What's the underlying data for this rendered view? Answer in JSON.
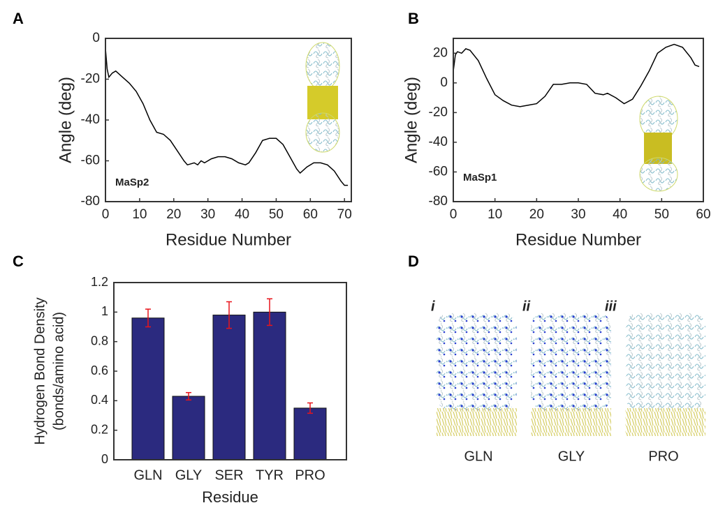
{
  "chart_data": [
    {
      "type": "line",
      "panel_label": "A",
      "ylabel": "Angle (deg)",
      "xlabel": "Residue Number",
      "annotation": "MaSp2",
      "color": "#000000",
      "x": [
        0,
        0.5,
        1,
        2,
        3,
        5,
        7,
        9,
        11,
        13,
        15,
        17,
        19,
        21,
        23,
        24,
        26,
        27,
        28,
        29,
        31,
        33,
        35,
        37,
        39,
        41,
        42,
        44,
        46,
        48,
        50,
        52,
        54,
        56,
        57,
        59,
        61,
        63,
        65,
        67,
        69,
        70,
        71
      ],
      "values": [
        -5,
        -15,
        -19,
        -17,
        -16,
        -19,
        -22,
        -26,
        -32,
        -40,
        -46,
        -47,
        -50,
        -55,
        -60,
        -62,
        -61,
        -62,
        -60,
        -61,
        -59,
        -58,
        -58,
        -59,
        -61,
        -62,
        -61,
        -56,
        -50,
        -49,
        -49,
        -52,
        -58,
        -64,
        -66,
        -63,
        -61,
        -61,
        -62,
        -65,
        -70,
        -72,
        -72
      ],
      "xlim": [
        0,
        72
      ],
      "xticks": [
        0,
        10,
        20,
        30,
        40,
        50,
        60,
        70
      ],
      "ylim": [
        -80,
        0
      ],
      "yticks": [
        -80,
        -60,
        -40,
        -20,
        0
      ]
    },
    {
      "type": "line",
      "panel_label": "B",
      "ylabel": "Angle (deg)",
      "xlabel": "Residue Number",
      "annotation": "MaSp1",
      "color": "#000000",
      "x": [
        0,
        0.5,
        1,
        2,
        3,
        4,
        6,
        8,
        10,
        12,
        14,
        16,
        18,
        20,
        22,
        24,
        26,
        28,
        30,
        32,
        34,
        36,
        37,
        39,
        41,
        43,
        45,
        47,
        49,
        51,
        53,
        55,
        57,
        58,
        59
      ],
      "values": [
        8,
        19,
        21,
        20,
        23,
        22,
        15,
        3,
        -8,
        -12,
        -15,
        -16,
        -15,
        -14,
        -9,
        -1,
        -1,
        0,
        0,
        -1,
        -7,
        -8,
        -7,
        -10,
        -14,
        -11,
        -2,
        8,
        20,
        24,
        26,
        24,
        17,
        12,
        11
      ],
      "xlim": [
        0,
        60
      ],
      "xticks": [
        0,
        10,
        20,
        30,
        40,
        50,
        60
      ],
      "ylim": [
        -80,
        30
      ],
      "yticks": [
        -80,
        -60,
        -40,
        -20,
        0,
        20
      ]
    },
    {
      "type": "bar",
      "panel_label": "C",
      "ylabel": [
        "Hydrogen Bond Density",
        "(bonds/amino acid)"
      ],
      "xlabel": "Residue",
      "color": "#2b2a7f",
      "error_color": "#e8141b",
      "categories": [
        "GLN",
        "GLY",
        "SER",
        "TYR",
        "PRO"
      ],
      "values": [
        0.96,
        0.43,
        0.98,
        1.0,
        0.35
      ],
      "errors": [
        0.06,
        0.025,
        0.09,
        0.09,
        0.035
      ],
      "ylim": [
        0,
        1.2
      ],
      "yticks": [
        0,
        0.2,
        0.4,
        0.6,
        0.8,
        1,
        1.2
      ]
    }
  ],
  "image_panel": {
    "panel_label": "D",
    "items": [
      {
        "numeral": "i",
        "label": "GLN"
      },
      {
        "numeral": "ii",
        "label": "GLY"
      },
      {
        "numeral": "iii",
        "label": "PRO"
      }
    ]
  }
}
